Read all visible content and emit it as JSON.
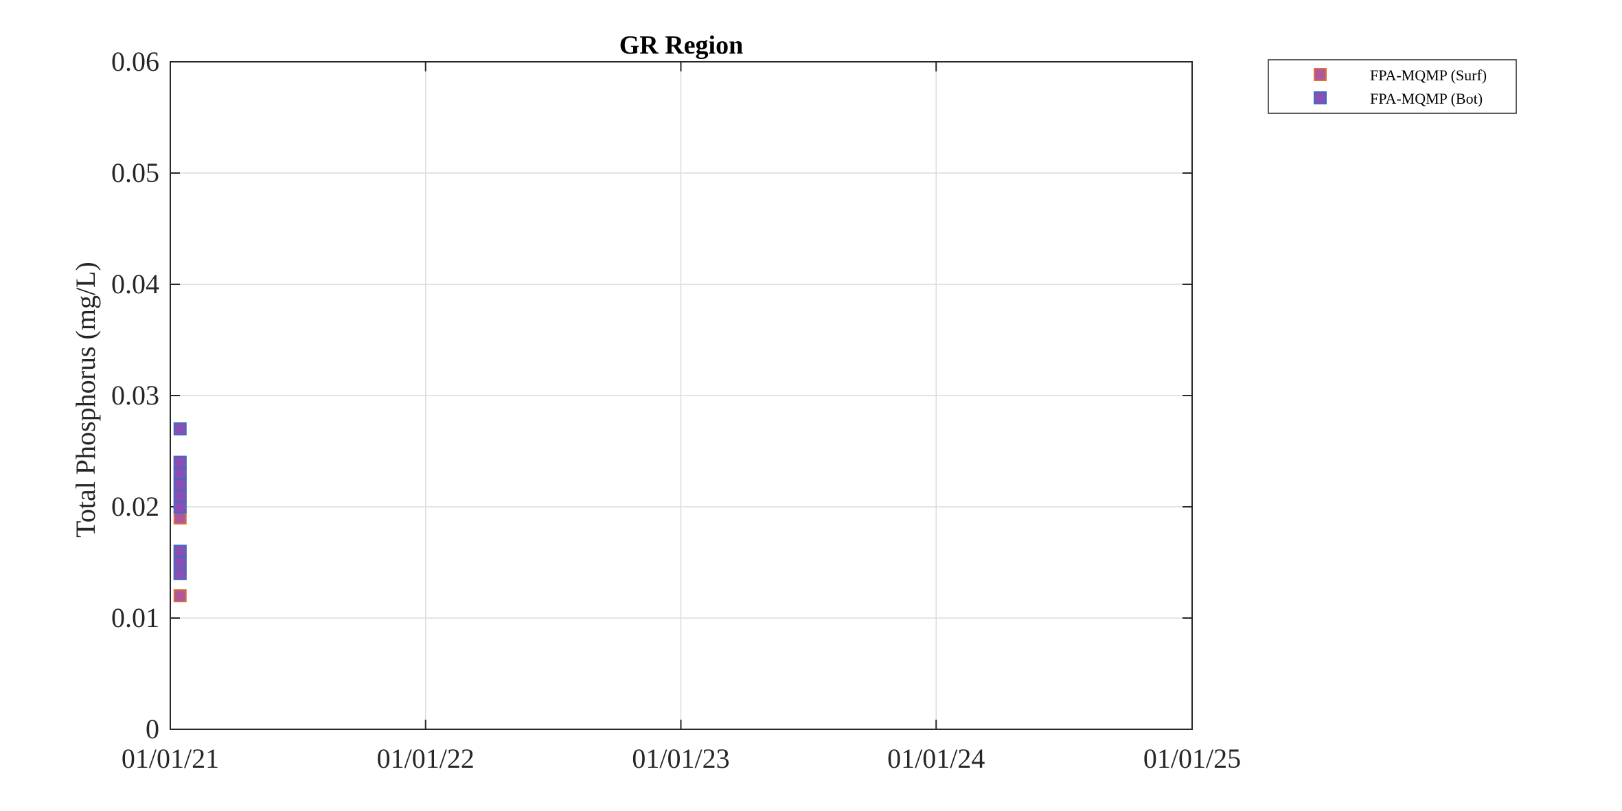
{
  "chart_data": {
    "type": "scatter",
    "title": "GR Region",
    "xlabel": "",
    "ylabel": "Total Phosphorus (mg/L)",
    "xlim": [
      "2021-01-01",
      "2025-01-01"
    ],
    "ylim": [
      0,
      0.06
    ],
    "x_ticks": [
      "2021-01-01",
      "2022-01-01",
      "2023-01-01",
      "2024-01-01",
      "2025-01-01"
    ],
    "x_tick_labels": [
      "01/01/21",
      "01/01/22",
      "01/01/23",
      "01/01/24",
      "01/01/25"
    ],
    "y_ticks": [
      0,
      0.01,
      0.02,
      0.03,
      0.04,
      0.05,
      0.06
    ],
    "y_tick_labels": [
      "0",
      "0.01",
      "0.02",
      "0.03",
      "0.04",
      "0.05",
      "0.06"
    ],
    "grid": true,
    "legend_position": "outside top-right",
    "series": [
      {
        "name": "FPA-MQMP (Surf)",
        "marker": "square",
        "face_color": "#b0569b",
        "edge_color": "#d9743a",
        "points": [
          {
            "x": "2021-01-15",
            "y": 0.012
          },
          {
            "x": "2021-01-15",
            "y": 0.014
          },
          {
            "x": "2021-01-15",
            "y": 0.015
          },
          {
            "x": "2021-01-15",
            "y": 0.016
          },
          {
            "x": "2021-01-15",
            "y": 0.019
          },
          {
            "x": "2021-01-15",
            "y": 0.02
          },
          {
            "x": "2021-01-15",
            "y": 0.021
          },
          {
            "x": "2021-01-15",
            "y": 0.022
          },
          {
            "x": "2021-01-15",
            "y": 0.023
          },
          {
            "x": "2021-01-15",
            "y": 0.024
          }
        ]
      },
      {
        "name": "FPA-MQMP (Bot)",
        "marker": "square",
        "face_color": "#8a4fb5",
        "edge_color": "#3f6bc4",
        "points": [
          {
            "x": "2021-01-15",
            "y": 0.014
          },
          {
            "x": "2021-01-15",
            "y": 0.015
          },
          {
            "x": "2021-01-15",
            "y": 0.016
          },
          {
            "x": "2021-01-15",
            "y": 0.02
          },
          {
            "x": "2021-01-15",
            "y": 0.021
          },
          {
            "x": "2021-01-15",
            "y": 0.022
          },
          {
            "x": "2021-01-15",
            "y": 0.023
          },
          {
            "x": "2021-01-15",
            "y": 0.024
          },
          {
            "x": "2021-01-15",
            "y": 0.027
          }
        ]
      }
    ]
  }
}
